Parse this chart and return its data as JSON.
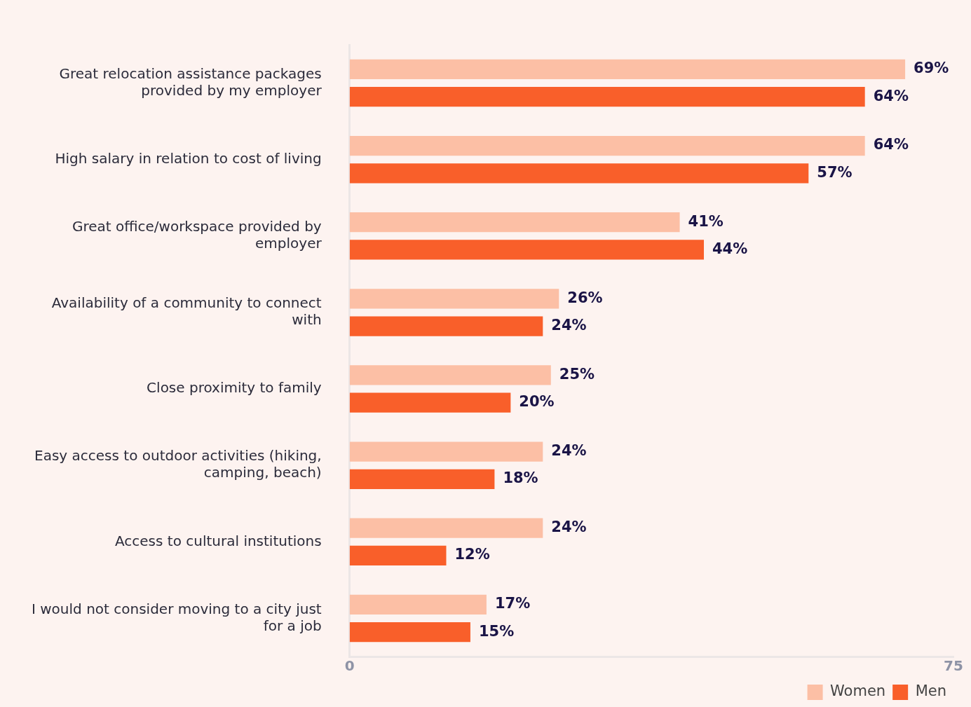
{
  "chart_data": {
    "type": "bar",
    "orientation": "horizontal",
    "categories": [
      "Great relocation assistance packages provided by my employer",
      "High salary in relation to cost of living",
      "Great office/workspace provided by employer",
      "Availability of a community to connect with",
      "Close proximity to family",
      "Easy access to outdoor activities (hiking, camping, beach)",
      "Access to cultural institutions",
      "I would not consider moving to a city just for a job"
    ],
    "series": [
      {
        "name": "Women",
        "color": "#fcbfa5",
        "values": [
          69,
          64,
          41,
          26,
          25,
          24,
          24,
          17
        ],
        "value_labels": [
          "69%",
          "64%",
          "41%",
          "26%",
          "25%",
          "24%",
          "24%",
          "17%"
        ]
      },
      {
        "name": "Men",
        "color": "#f95f2a",
        "values": [
          64,
          57,
          44,
          24,
          20,
          18,
          12,
          15
        ],
        "value_labels": [
          "64%",
          "57%",
          "44%",
          "24%",
          "20%",
          "18%",
          "12%",
          "15%"
        ]
      }
    ],
    "xlim": [
      0,
      75
    ],
    "xticks": [
      0,
      75
    ],
    "legend": "bottom right",
    "grid": false
  }
}
